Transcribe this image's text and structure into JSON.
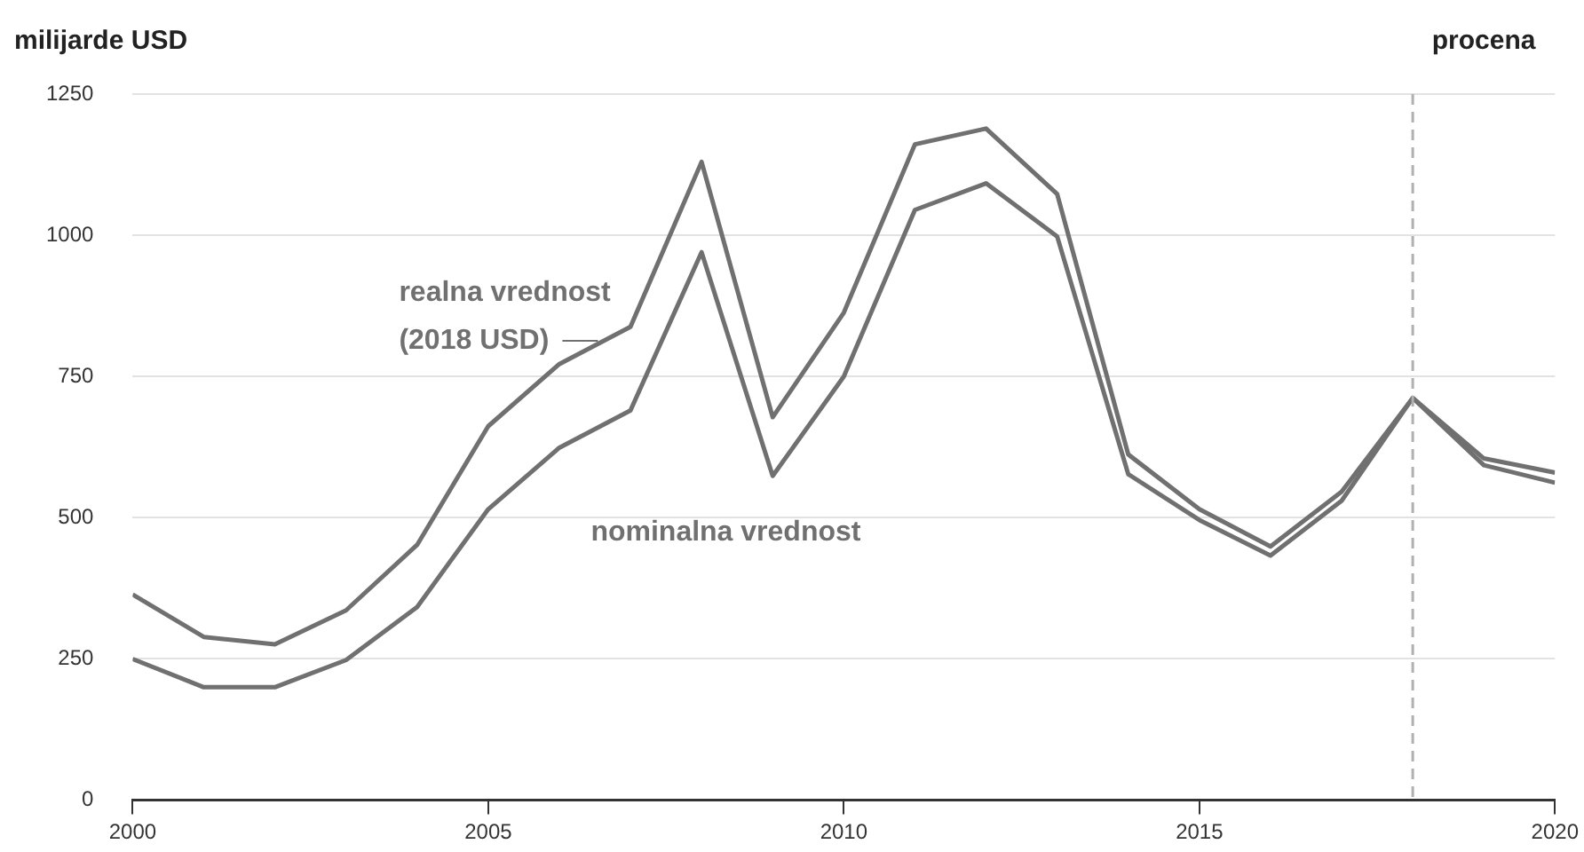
{
  "chart_data": {
    "type": "line",
    "ylabel": "milijarde USD",
    "x": [
      2000,
      2001,
      2002,
      2003,
      2004,
      2005,
      2006,
      2007,
      2008,
      2009,
      2010,
      2011,
      2012,
      2013,
      2014,
      2015,
      2016,
      2017,
      2018,
      2019,
      2020
    ],
    "series": [
      {
        "name": "realna vrednost\n(2018 USD)",
        "color": "#707070",
        "values": [
          364,
          289,
          276,
          336,
          452,
          662,
          772,
          838,
          1130,
          678,
          863,
          1161,
          1189,
          1073,
          612,
          515,
          449,
          546,
          712,
          593,
          562
        ]
      },
      {
        "name": "nominalna vrednost",
        "color": "#707070",
        "values": [
          250,
          200,
          200,
          248,
          342,
          515,
          624,
          690,
          970,
          574,
          750,
          1045,
          1092,
          998,
          577,
          496,
          433,
          530,
          712,
          605,
          580
        ]
      }
    ],
    "xlim": [
      2000,
      2020
    ],
    "xticks": [
      2000,
      2005,
      2010,
      2015,
      2020
    ],
    "ylim": [
      0,
      1250
    ],
    "yticks": [
      0,
      250,
      500,
      750,
      1000,
      1250
    ],
    "grid": "y",
    "legend": false,
    "marker": "none",
    "line_style": "solid",
    "ref_lines": [
      {
        "axis": "x",
        "value": 2018,
        "label": "procena",
        "color": "#b0b0b0",
        "line_style": "dashed"
      }
    ]
  }
}
